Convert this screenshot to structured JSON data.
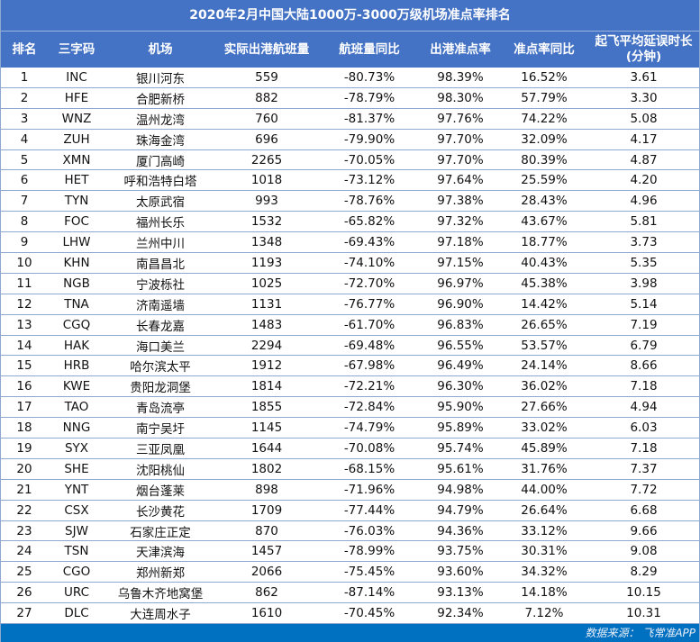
{
  "title": "2020年2月中国大陆1000万-3000万级机场准点率排名",
  "columns": [
    "排名",
    "三字码",
    "机场",
    "实际出港航班量",
    "航班量同比",
    "出港准点率",
    "准点率同比",
    "起飞平均延误时长",
    "(分钟)"
  ],
  "rows": [
    {
      "rank": "1",
      "code": "INC",
      "airport": "银川河东",
      "flights": "559",
      "flights_yoy": "-80.73%",
      "ontime": "98.39%",
      "ontime_yoy": "16.52%",
      "delay": "3.61"
    },
    {
      "rank": "2",
      "code": "HFE",
      "airport": "合肥新桥",
      "flights": "882",
      "flights_yoy": "-78.79%",
      "ontime": "98.30%",
      "ontime_yoy": "57.79%",
      "delay": "3.30"
    },
    {
      "rank": "3",
      "code": "WNZ",
      "airport": "温州龙湾",
      "flights": "760",
      "flights_yoy": "-81.37%",
      "ontime": "97.76%",
      "ontime_yoy": "74.22%",
      "delay": "5.08"
    },
    {
      "rank": "4",
      "code": "ZUH",
      "airport": "珠海金湾",
      "flights": "696",
      "flights_yoy": "-79.90%",
      "ontime": "97.70%",
      "ontime_yoy": "32.09%",
      "delay": "4.17"
    },
    {
      "rank": "5",
      "code": "XMN",
      "airport": "厦门高崎",
      "flights": "2265",
      "flights_yoy": "-70.05%",
      "ontime": "97.70%",
      "ontime_yoy": "80.39%",
      "delay": "4.87"
    },
    {
      "rank": "6",
      "code": "HET",
      "airport": "呼和浩特白塔",
      "flights": "1018",
      "flights_yoy": "-73.12%",
      "ontime": "97.64%",
      "ontime_yoy": "25.59%",
      "delay": "4.20"
    },
    {
      "rank": "7",
      "code": "TYN",
      "airport": "太原武宿",
      "flights": "993",
      "flights_yoy": "-78.76%",
      "ontime": "97.38%",
      "ontime_yoy": "28.43%",
      "delay": "4.96"
    },
    {
      "rank": "8",
      "code": "FOC",
      "airport": "福州长乐",
      "flights": "1532",
      "flights_yoy": "-65.82%",
      "ontime": "97.32%",
      "ontime_yoy": "43.67%",
      "delay": "5.81"
    },
    {
      "rank": "9",
      "code": "LHW",
      "airport": "兰州中川",
      "flights": "1348",
      "flights_yoy": "-69.43%",
      "ontime": "97.18%",
      "ontime_yoy": "18.77%",
      "delay": "3.73"
    },
    {
      "rank": "10",
      "code": "KHN",
      "airport": "南昌昌北",
      "flights": "1193",
      "flights_yoy": "-74.10%",
      "ontime": "97.15%",
      "ontime_yoy": "40.43%",
      "delay": "5.35"
    },
    {
      "rank": "11",
      "code": "NGB",
      "airport": "宁波栎社",
      "flights": "1025",
      "flights_yoy": "-72.70%",
      "ontime": "96.97%",
      "ontime_yoy": "45.38%",
      "delay": "3.98"
    },
    {
      "rank": "12",
      "code": "TNA",
      "airport": "济南遥墙",
      "flights": "1131",
      "flights_yoy": "-76.77%",
      "ontime": "96.90%",
      "ontime_yoy": "14.42%",
      "delay": "5.14"
    },
    {
      "rank": "13",
      "code": "CGQ",
      "airport": "长春龙嘉",
      "flights": "1483",
      "flights_yoy": "-61.70%",
      "ontime": "96.83%",
      "ontime_yoy": "26.65%",
      "delay": "7.19"
    },
    {
      "rank": "14",
      "code": "HAK",
      "airport": "海口美兰",
      "flights": "2294",
      "flights_yoy": "-69.48%",
      "ontime": "96.55%",
      "ontime_yoy": "53.57%",
      "delay": "6.79"
    },
    {
      "rank": "15",
      "code": "HRB",
      "airport": "哈尔滨太平",
      "flights": "1912",
      "flights_yoy": "-67.98%",
      "ontime": "96.49%",
      "ontime_yoy": "24.14%",
      "delay": "8.66"
    },
    {
      "rank": "16",
      "code": "KWE",
      "airport": "贵阳龙洞堡",
      "flights": "1814",
      "flights_yoy": "-72.21%",
      "ontime": "96.30%",
      "ontime_yoy": "36.02%",
      "delay": "7.18"
    },
    {
      "rank": "17",
      "code": "TAO",
      "airport": "青岛流亭",
      "flights": "1855",
      "flights_yoy": "-72.84%",
      "ontime": "95.90%",
      "ontime_yoy": "27.66%",
      "delay": "4.94"
    },
    {
      "rank": "18",
      "code": "NNG",
      "airport": "南宁吴圩",
      "flights": "1145",
      "flights_yoy": "-74.79%",
      "ontime": "95.89%",
      "ontime_yoy": "33.02%",
      "delay": "6.03"
    },
    {
      "rank": "19",
      "code": "SYX",
      "airport": "三亚凤凰",
      "flights": "1644",
      "flights_yoy": "-70.08%",
      "ontime": "95.74%",
      "ontime_yoy": "45.89%",
      "delay": "7.18"
    },
    {
      "rank": "20",
      "code": "SHE",
      "airport": "沈阳桃仙",
      "flights": "1802",
      "flights_yoy": "-68.15%",
      "ontime": "95.61%",
      "ontime_yoy": "31.76%",
      "delay": "7.37"
    },
    {
      "rank": "21",
      "code": "YNT",
      "airport": "烟台蓬莱",
      "flights": "898",
      "flights_yoy": "-71.96%",
      "ontime": "94.98%",
      "ontime_yoy": "44.00%",
      "delay": "7.72"
    },
    {
      "rank": "22",
      "code": "CSX",
      "airport": "长沙黄花",
      "flights": "1709",
      "flights_yoy": "-77.44%",
      "ontime": "94.79%",
      "ontime_yoy": "26.64%",
      "delay": "6.68"
    },
    {
      "rank": "23",
      "code": "SJW",
      "airport": "石家庄正定",
      "flights": "870",
      "flights_yoy": "-76.03%",
      "ontime": "94.36%",
      "ontime_yoy": "33.12%",
      "delay": "9.66"
    },
    {
      "rank": "24",
      "code": "TSN",
      "airport": "天津滨海",
      "flights": "1457",
      "flights_yoy": "-78.99%",
      "ontime": "93.75%",
      "ontime_yoy": "30.31%",
      "delay": "9.08"
    },
    {
      "rank": "25",
      "code": "CGO",
      "airport": "郑州新郑",
      "flights": "2066",
      "flights_yoy": "-75.45%",
      "ontime": "93.60%",
      "ontime_yoy": "34.32%",
      "delay": "8.29"
    },
    {
      "rank": "26",
      "code": "URC",
      "airport": "乌鲁木齐地窝堡",
      "flights": "862",
      "flights_yoy": "-87.14%",
      "ontime": "93.13%",
      "ontime_yoy": "14.18%",
      "delay": "10.15"
    },
    {
      "rank": "27",
      "code": "DLC",
      "airport": "大连周水子",
      "flights": "1610",
      "flights_yoy": "-70.45%",
      "ontime": "92.34%",
      "ontime_yoy": "7.12%",
      "delay": "10.31"
    }
  ],
  "footer": "数据来源：  飞常准APP",
  "colors": {
    "header_bg": "#4472c4",
    "footer_bg": "#0070c0",
    "row_border": "#8ea9cf"
  }
}
